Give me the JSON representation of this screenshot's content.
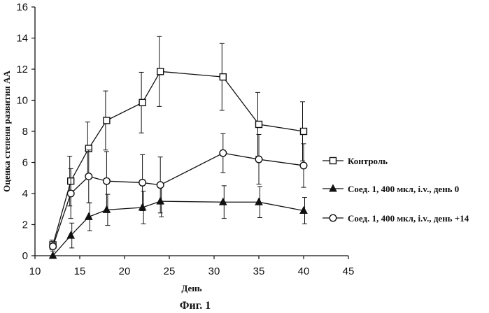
{
  "chart_data": {
    "type": "line",
    "caption": "Фиг. 1",
    "xlabel": "День",
    "ylabel": "Оценка степени развития АА",
    "xlim": [
      10,
      45
    ],
    "ylim": [
      0,
      16
    ],
    "x_ticks": [
      10,
      15,
      20,
      25,
      30,
      35,
      40,
      45
    ],
    "y_ticks": [
      0,
      2,
      4,
      6,
      8,
      10,
      12,
      14,
      16
    ],
    "grid": false,
    "legend_position": "right",
    "series": [
      {
        "name": "Контроль",
        "marker": "square-open",
        "x": [
          12,
          14,
          16,
          18,
          22,
          24,
          31,
          35,
          40
        ],
        "y": [
          0.7,
          4.8,
          6.9,
          8.7,
          9.85,
          11.85,
          11.5,
          8.45,
          8.0
        ],
        "err": [
          0.3,
          1.6,
          1.7,
          1.9,
          1.95,
          2.25,
          2.15,
          2.05,
          1.9
        ]
      },
      {
        "name": "Соед. 1, 400 мкл, i.v., день 0",
        "marker": "triangle-filled",
        "x": [
          12,
          14,
          16,
          18,
          22,
          24,
          31,
          35,
          40
        ],
        "y": [
          0.0,
          1.3,
          2.5,
          2.95,
          3.1,
          3.5,
          3.45,
          3.45,
          2.9
        ],
        "err": [
          0.0,
          0.8,
          0.9,
          1.0,
          1.05,
          1.0,
          1.05,
          1.0,
          0.85
        ]
      },
      {
        "name": "Соед. 1, 400 мкл, i.v., день +14",
        "marker": "circle-open",
        "x": [
          12,
          14,
          16,
          18,
          22,
          24,
          31,
          35,
          40
        ],
        "y": [
          0.6,
          4.0,
          5.1,
          4.8,
          4.7,
          4.55,
          6.6,
          6.2,
          5.8
        ],
        "err": [
          0.3,
          1.6,
          1.7,
          1.9,
          1.8,
          1.8,
          1.25,
          1.6,
          1.4
        ]
      }
    ]
  }
}
